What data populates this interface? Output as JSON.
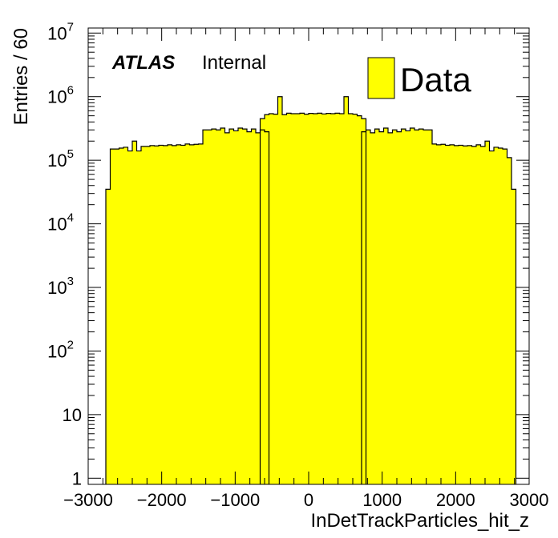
{
  "chart_data": {
    "type": "bar",
    "xlabel": "InDetTrackParticles_hit_z",
    "ylabel": "Entries / 60",
    "xlim": [
      -3000,
      3000
    ],
    "ylim": [
      0.8,
      12000000
    ],
    "log_y": true,
    "bin_width": 60,
    "fill_color": "#ffff00",
    "x_ticks": [
      "−3000",
      "−2000",
      "−1000",
      "0",
      "1000",
      "2000",
      "3000"
    ],
    "x_tick_values": [
      -3000,
      -2000,
      -1000,
      0,
      1000,
      2000,
      3000
    ],
    "y_ticks": [
      {
        "value": 1,
        "base": "1",
        "exp": ""
      },
      {
        "value": 10,
        "base": "10",
        "exp": ""
      },
      {
        "value": 100,
        "base": "10",
        "exp": "2"
      },
      {
        "value": 1000,
        "base": "10",
        "exp": "3"
      },
      {
        "value": 10000,
        "base": "10",
        "exp": "4"
      },
      {
        "value": 100000,
        "base": "10",
        "exp": "5"
      },
      {
        "value": 1000000,
        "base": "10",
        "exp": "6"
      },
      {
        "value": 10000000,
        "base": "10",
        "exp": "7"
      }
    ],
    "experiment_label": "ATLAS",
    "status_label": "Internal",
    "legend": [
      {
        "name": "Data",
        "color": "#ffff00"
      }
    ],
    "segments": [
      {
        "x_start": -2760,
        "values": [
          35000,
          150000,
          150000,
          155000,
          160000,
          140000,
          200000,
          140000,
          165000,
          165000,
          170000,
          168000,
          172000,
          170000,
          175000,
          170000,
          175000,
          172000,
          180000,
          175000,
          178000,
          180000,
          300000,
          300000,
          310000,
          300000,
          320000,
          270000,
          310000,
          290000,
          320000,
          310000,
          280000,
          310000,
          270000,
          300000,
          280000
        ]
      },
      {
        "x_start": -660,
        "values": [
          450000,
          520000,
          540000,
          530000,
          1000000,
          520000,
          550000,
          540000,
          540000,
          550000,
          530000,
          545000,
          540000,
          550000,
          535000,
          545000,
          540000,
          550000,
          540000,
          1000000,
          540000,
          530000,
          500000,
          450000
        ]
      },
      {
        "x_start": 720,
        "values": [
          280000,
          300000,
          270000,
          310000,
          280000,
          320000,
          270000,
          300000,
          280000,
          310000,
          290000,
          320000,
          300000,
          310000,
          300000,
          300000,
          180000,
          175000,
          178000,
          172000,
          175000,
          170000,
          172000,
          168000,
          170000,
          165000,
          175000,
          165000,
          200000,
          140000,
          160000,
          155000,
          150000,
          110000,
          35000
        ]
      }
    ]
  }
}
